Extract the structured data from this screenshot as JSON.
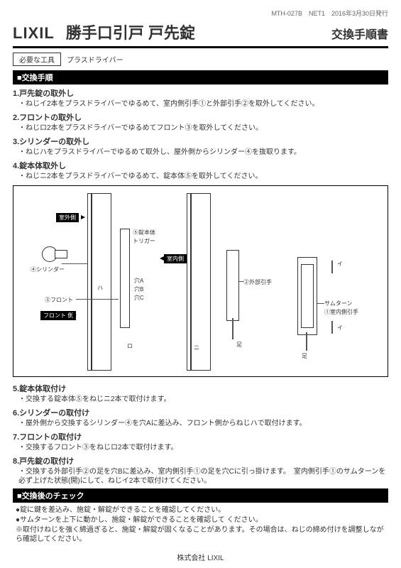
{
  "meta": "MTH-027B　NET1　2016年3月30日発行",
  "logo": "LIXIL",
  "title": "勝手口引戸 戸先錠",
  "subtitle": "交換手順書",
  "tool": {
    "label": "必要な工具",
    "value": "プラスドライバー"
  },
  "section1": "■交換手順",
  "steps": [
    {
      "t": "1.戸先錠の取外し",
      "d": "・ねじイ2本をプラスドライバーでゆるめて、室内側引手①と外部引手②を取外してください。"
    },
    {
      "t": "2.フロントの取外し",
      "d": "・ねじロ2本をプラスドライバーでゆるめてフロント③を取外してください。"
    },
    {
      "t": "3.シリンダーの取外し",
      "d": "・ねじハをプラスドライバーでゆるめて取外し、屋外側からシリンダー④を抜取ります。"
    },
    {
      "t": "4.錠本体取外し",
      "d": "・ねじニ2本をプラスドライバーでゆるめて、錠本体⑤を取外してください。"
    }
  ],
  "diagram": {
    "outdoor": "室外側",
    "indoor": "室内側",
    "front": "フロント 側",
    "cylinder": "④シリンダー",
    "frontPart": "③フロント",
    "lockBody": "⑤錠本体",
    "trigger": "トリガー",
    "holeA": "穴A",
    "holeB": "穴B",
    "holeC": "穴C",
    "extHandle": "②外部引手",
    "foot": "足",
    "thumbturn": "サムターン",
    "intHandle": "①室内側引手",
    "screwI": "イ",
    "screwHa": "ハ",
    "screwNi": "ニ",
    "screwRo": "ロ"
  },
  "steps2": [
    {
      "t": "5.錠本体取付け",
      "d": "・交換する錠本体⑤をねじニ2本で取付けます。"
    },
    {
      "t": "6.シリンダーの取付け",
      "d": "・屋外側から交換するシリンダー④を穴Aに差込み、フロント側からねじハで取付けます。"
    },
    {
      "t": "7.フロントの取付け",
      "d": "・交換するフロント③をねじロ2本で取付けます。"
    },
    {
      "t": "8.戸先錠の取付け",
      "d": "・交換する外部引手②の足を穴Bに差込み、室内側引手①の足を穴Cに引っ掛けます。　室内側引手①のサムターンを必ず上げた状態(開)にして、ねじイ2本で取付けてください。"
    }
  ],
  "section2": "■交換後のチェック",
  "checks": [
    "●錠に鍵を差込み、施錠・解錠ができることを確認してください。",
    "●サムターンを上下に動かし、施錠・解錠ができることを確認して ください。",
    "※取付けねじを強く締過ぎると、施錠・解錠が固くなることがあります。その場合は、ねじの締め付けを調整しながら確認してください。"
  ],
  "footer": "株式会社 LIXIL"
}
